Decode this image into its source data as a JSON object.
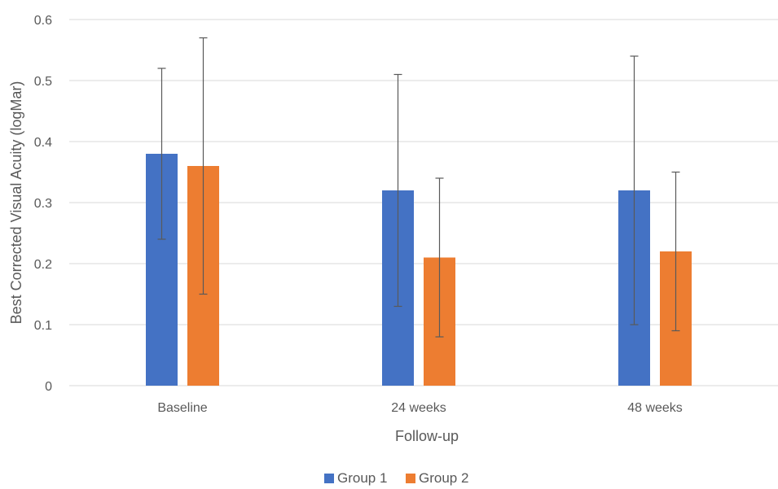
{
  "chart_data": {
    "type": "bar",
    "title": "",
    "xlabel": "Follow-up",
    "ylabel": "Best Corrected Visual Acuity (logMar)",
    "categories": [
      "Baseline",
      "24 weeks",
      "48 weeks"
    ],
    "series": [
      {
        "name": "Group 1",
        "color": "#4472C4",
        "values": [
          0.38,
          0.32,
          0.32
        ],
        "error_low": [
          0.24,
          0.13,
          0.1
        ],
        "error_high": [
          0.52,
          0.51,
          0.54
        ]
      },
      {
        "name": "Group 2",
        "color": "#ED7D31",
        "values": [
          0.36,
          0.21,
          0.22
        ],
        "error_low": [
          0.15,
          0.08,
          0.09
        ],
        "error_high": [
          0.57,
          0.34,
          0.35
        ]
      }
    ],
    "ylim": [
      0,
      0.6
    ],
    "yticks": [
      "0",
      "0.1",
      "0.2",
      "0.3",
      "0.4",
      "0.5",
      "0.6"
    ],
    "grid": true,
    "legend": "bottom"
  }
}
